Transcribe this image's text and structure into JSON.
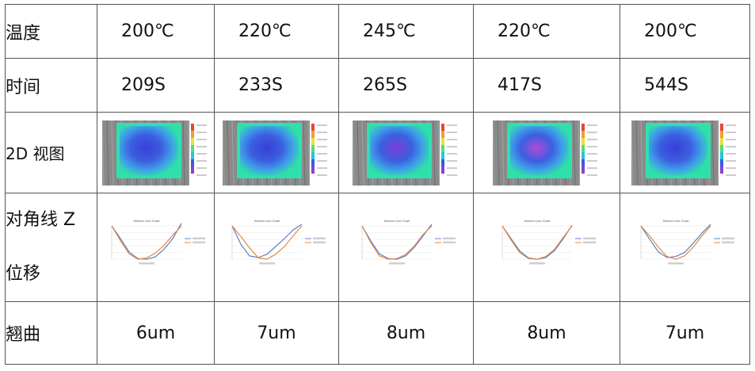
{
  "rows": {
    "temperature": {
      "label": "温度",
      "values": [
        "200℃",
        "220℃",
        "245℃",
        "220℃",
        "200℃"
      ]
    },
    "time": {
      "label": "时间",
      "values": [
        "209S",
        "233S",
        "265S",
        "417S",
        "544S"
      ]
    },
    "view2d": {
      "label": "2D 视图"
    },
    "zdisp": {
      "label_line1": "对角线 Z",
      "label_line2": "位移"
    },
    "warpage": {
      "label": "翘曲",
      "values": [
        "6um",
        "7um",
        "8um",
        "8um",
        "7um"
      ]
    }
  },
  "chart_data": [
    {
      "type": "line",
      "title": "Section Line Chart",
      "series": [
        {
          "values": [
            0.0,
            -0.38,
            -0.78,
            -0.98,
            -1.0,
            -0.93,
            -0.7,
            -0.38,
            0.08
          ]
        },
        {
          "values": [
            0.0,
            -0.44,
            -0.84,
            -1.0,
            -0.96,
            -0.82,
            -0.58,
            -0.28,
            0.0
          ]
        }
      ]
    },
    {
      "type": "line",
      "title": "Section Line Chart",
      "series": [
        {
          "values": [
            0.0,
            -0.55,
            -0.9,
            -0.95,
            -0.85,
            -0.62,
            -0.38,
            -0.12,
            0.05
          ]
        },
        {
          "values": [
            0.0,
            -0.32,
            -0.66,
            -0.96,
            -1.0,
            -0.85,
            -0.62,
            -0.3,
            0.0
          ]
        }
      ]
    },
    {
      "type": "line",
      "title": "Section Line Chart",
      "series": [
        {
          "values": [
            0.0,
            -0.45,
            -0.84,
            -0.98,
            -1.0,
            -0.9,
            -0.64,
            -0.3,
            0.05
          ]
        },
        {
          "values": [
            0.0,
            -0.5,
            -0.9,
            -1.0,
            -0.98,
            -0.86,
            -0.6,
            -0.26,
            0.0
          ]
        }
      ]
    },
    {
      "type": "line",
      "title": "Section Line Chart",
      "series": [
        {
          "values": [
            0.0,
            -0.38,
            -0.75,
            -0.96,
            -1.0,
            -0.95,
            -0.74,
            -0.38,
            0.02
          ]
        },
        {
          "values": [
            0.0,
            -0.42,
            -0.8,
            -0.98,
            -1.0,
            -0.92,
            -0.7,
            -0.34,
            0.0
          ]
        }
      ]
    },
    {
      "type": "line",
      "title": "Section Line Chart",
      "series": [
        {
          "values": [
            0.0,
            -0.4,
            -0.78,
            -0.95,
            -0.92,
            -0.8,
            -0.52,
            -0.22,
            0.05
          ]
        },
        {
          "values": [
            0.0,
            -0.3,
            -0.64,
            -0.92,
            -1.0,
            -0.9,
            -0.64,
            -0.3,
            0.0
          ]
        }
      ]
    }
  ]
}
